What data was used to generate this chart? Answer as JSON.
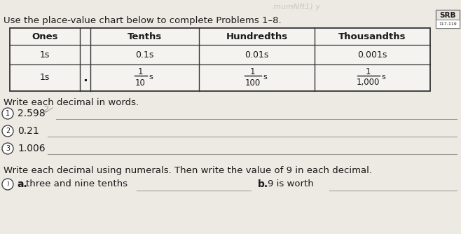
{
  "bg_color": "#edeae4",
  "title": "Use the place-value chart below to complete Problems 1–8.",
  "srb_label": "SRB",
  "srb_sub": "117-119",
  "table_headers": [
    "Ones",
    "Tenths",
    "Hundredths",
    "Thousandths"
  ],
  "table_row1": [
    "1s",
    "0.1s",
    "0.01s",
    "0.001s"
  ],
  "table_row2_ones": "1s",
  "frac_nums": [
    "1",
    "1",
    "1"
  ],
  "frac_dens": [
    "10",
    "100",
    "1,000"
  ],
  "section1_title": "Write each decimal in words.",
  "prob_decimals": [
    "2.598",
    "0.21",
    "1.006"
  ],
  "section2_title": "Write each decimal using numerals. Then write the value of 9 in each decimal.",
  "part_a_label": "a.",
  "part_a_text": "three and nine tenths",
  "part_b_label": "b.",
  "part_b_text": "9 is worth",
  "tc": "#1a1a1a",
  "lc": "#999999",
  "tbc": "#333333",
  "table_bg": "#f5f3ef",
  "srb_bg": "#e8e6e0"
}
